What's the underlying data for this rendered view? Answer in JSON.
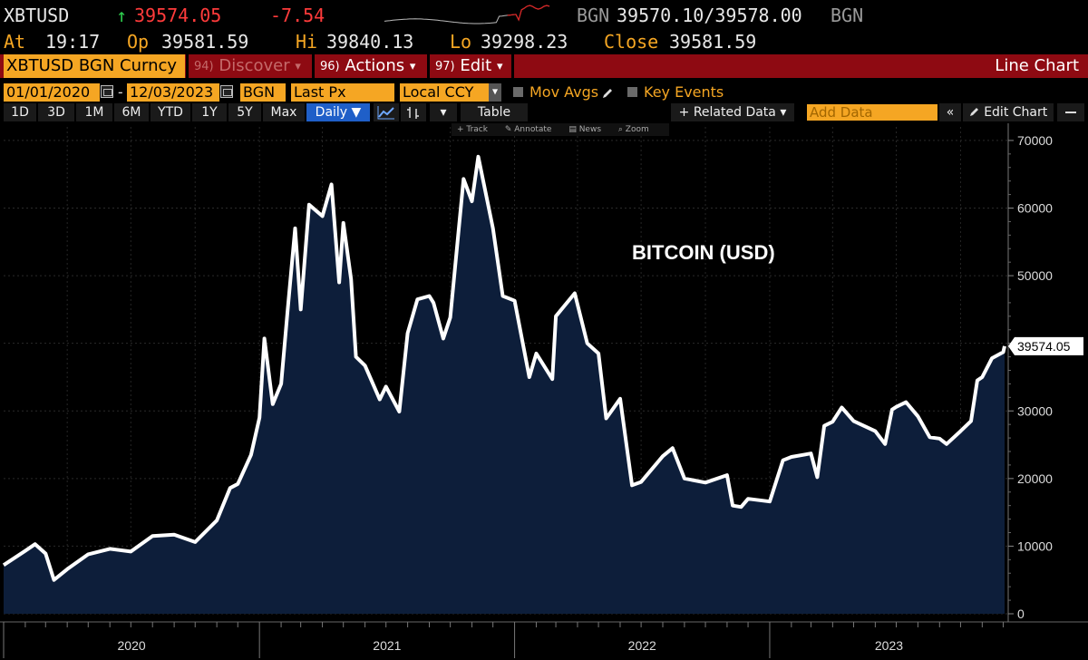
{
  "quote": {
    "ticker": "XBTUSD",
    "arrow": "↑",
    "last": "39574.05",
    "change": "-7.54",
    "bid_src": "BGN",
    "bid_ask": "39570.10/39578.00",
    "ask_src": "BGN",
    "at_label": "At",
    "time": "19:17",
    "open_label": "Op",
    "open": "39581.59",
    "high_label": "Hi",
    "high": "39840.13",
    "low_label": "Lo",
    "low": "39298.23",
    "close_label": "Close",
    "close": "39581.59"
  },
  "command_bar": {
    "security": "XBTUSD BGN Curncy",
    "discover_num": "94)",
    "discover": "Discover",
    "actions_num": "96)",
    "actions": "Actions",
    "edit_num": "97)",
    "edit": "Edit",
    "chart_type": "Line Chart"
  },
  "settings": {
    "start_date": "01/01/2020",
    "date_sep": "-",
    "end_date": "12/03/2023",
    "source": "BGN",
    "field": "Last Px",
    "currency": "Local CCY",
    "mov_avgs": "Mov Avgs",
    "key_events": "Key Events"
  },
  "toolbar": {
    "periods": [
      "1D",
      "3D",
      "1M",
      "6M",
      "YTD",
      "1Y",
      "5Y",
      "Max"
    ],
    "frequency": "Daily ▼",
    "table": "Table",
    "related_data": "+ Related Data ▾",
    "add_data_placeholder": "Add Data",
    "collapse": "«",
    "edit_chart": "Edit Chart"
  },
  "chart_tools": {
    "track": "Track",
    "annotate": "Annotate",
    "news": "News",
    "zoom": "Zoom"
  },
  "colors": {
    "line": "#ffffff",
    "fill": "#0d1e3a",
    "accent_orange": "#f5a623",
    "command_red": "#8e0a12",
    "down_red": "#ff3b3b",
    "up_green": "#2fd14f"
  },
  "chart_data": {
    "type": "area",
    "title": "BITCOIN (USD)",
    "ylim": [
      0,
      72000
    ],
    "yticks": [
      0,
      10000,
      20000,
      30000,
      40000,
      50000,
      60000,
      70000
    ],
    "ytick_labels": [
      "0",
      "10000",
      "20000",
      "30000",
      "40000",
      "50000",
      "60000",
      "70000"
    ],
    "x_range": [
      "2020-01-01",
      "2023-12-03"
    ],
    "year_labels": [
      "2020",
      "2021",
      "2022",
      "2023"
    ],
    "last_value_label": "39574.05",
    "grid": true,
    "x": [
      "2020-01-01",
      "2020-02-01",
      "2020-02-15",
      "2020-03-01",
      "2020-03-13",
      "2020-04-01",
      "2020-05-01",
      "2020-06-01",
      "2020-07-01",
      "2020-08-01",
      "2020-09-01",
      "2020-10-01",
      "2020-11-01",
      "2020-11-20",
      "2020-12-01",
      "2020-12-20",
      "2021-01-01",
      "2021-01-08",
      "2021-01-20",
      "2021-02-01",
      "2021-02-10",
      "2021-02-21",
      "2021-03-01",
      "2021-03-13",
      "2021-04-01",
      "2021-04-14",
      "2021-04-25",
      "2021-05-01",
      "2021-05-12",
      "2021-05-19",
      "2021-06-01",
      "2021-06-22",
      "2021-07-01",
      "2021-07-20",
      "2021-08-01",
      "2021-08-15",
      "2021-09-01",
      "2021-09-07",
      "2021-09-21",
      "2021-10-01",
      "2021-10-20",
      "2021-11-01",
      "2021-11-10",
      "2021-12-01",
      "2021-12-15",
      "2022-01-01",
      "2022-01-22",
      "2022-02-01",
      "2022-02-24",
      "2022-03-01",
      "2022-03-28",
      "2022-04-15",
      "2022-05-01",
      "2022-05-12",
      "2022-06-01",
      "2022-06-18",
      "2022-07-01",
      "2022-08-01",
      "2022-08-15",
      "2022-09-01",
      "2022-10-01",
      "2022-11-01",
      "2022-11-09",
      "2022-11-21",
      "2022-12-01",
      "2023-01-01",
      "2023-01-20",
      "2023-02-01",
      "2023-03-01",
      "2023-03-10",
      "2023-03-20",
      "2023-04-01",
      "2023-04-14",
      "2023-05-01",
      "2023-06-01",
      "2023-06-15",
      "2023-06-25",
      "2023-07-01",
      "2023-07-15",
      "2023-08-01",
      "2023-08-18",
      "2023-09-01",
      "2023-09-11",
      "2023-10-01",
      "2023-10-16",
      "2023-10-25",
      "2023-11-01",
      "2023-11-15",
      "2023-12-01",
      "2023-12-03"
    ],
    "series": [
      {
        "values": [
          7200,
          9300,
          10300,
          8900,
          5000,
          6600,
          8800,
          9600,
          9200,
          11500,
          11700,
          10600,
          13800,
          18600,
          19200,
          23500,
          29000,
          40700,
          31000,
          34000,
          44500,
          57000,
          45000,
          60500,
          58800,
          63500,
          49000,
          57800,
          49500,
          38000,
          36700,
          31700,
          33600,
          29900,
          41500,
          46500,
          47000,
          46000,
          40700,
          43800,
          64300,
          61000,
          67600,
          57000,
          47000,
          46300,
          35000,
          38500,
          34700,
          44000,
          47400,
          40000,
          38500,
          28900,
          31800,
          19000,
          19500,
          23300,
          24500,
          20000,
          19400,
          20500,
          16000,
          15800,
          17000,
          16600,
          22700,
          23200,
          23700,
          20200,
          27800,
          28400,
          30500,
          28500,
          27000,
          25100,
          30200,
          30600,
          31300,
          29200,
          26100,
          25900,
          25100,
          27000,
          28500,
          34500,
          35000,
          37800,
          38700,
          39574
        ]
      }
    ]
  }
}
